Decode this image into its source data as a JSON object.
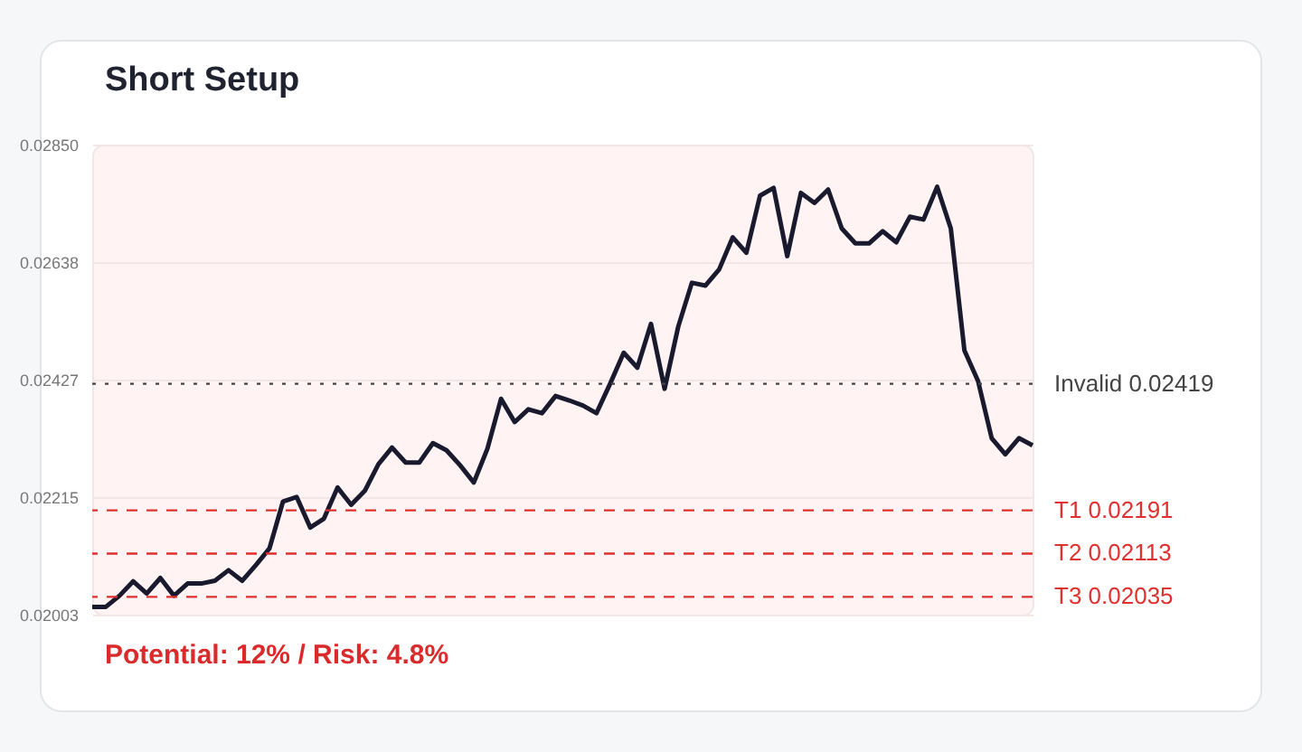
{
  "chart_data": {
    "type": "line",
    "title": "Short Setup",
    "categories": [
      null,
      null,
      null,
      null,
      null,
      null,
      null,
      null,
      null,
      null,
      null,
      null,
      null,
      null,
      null,
      null,
      null,
      null,
      null,
      null,
      null,
      null,
      null,
      null,
      null,
      null,
      null,
      null,
      null,
      null,
      null,
      null,
      null,
      null,
      null,
      null,
      null,
      null,
      null,
      null,
      null,
      null,
      null,
      null,
      null,
      null,
      null,
      null,
      null,
      null,
      null,
      null,
      null,
      null,
      null,
      null,
      null,
      null,
      null,
      null,
      null,
      null,
      null,
      null,
      null,
      null,
      null,
      null,
      null,
      null
    ],
    "series": [
      {
        "color": "#1a1a2e",
        "values": [
          0.02017,
          0.02017,
          0.02037,
          0.02063,
          0.02041,
          0.02069,
          0.02037,
          0.02059,
          0.02059,
          0.02064,
          0.02083,
          0.02064,
          0.02092,
          0.02122,
          0.02207,
          0.02215,
          0.0216,
          0.02176,
          0.02232,
          0.02201,
          0.02226,
          0.02274,
          0.02304,
          0.02277,
          0.02277,
          0.02312,
          0.02299,
          0.02272,
          0.02241,
          0.02302,
          0.02392,
          0.0235,
          0.02373,
          0.02366,
          0.02397,
          0.02389,
          0.0238,
          0.02366,
          0.02419,
          0.02475,
          0.02448,
          0.02527,
          0.0241,
          0.02522,
          0.02601,
          0.02596,
          0.02625,
          0.02683,
          0.02655,
          0.02758,
          0.02772,
          0.02649,
          0.02763,
          0.02745,
          0.02769,
          0.02699,
          0.02672,
          0.02672,
          0.02694,
          0.02674,
          0.0272,
          0.02715,
          0.02774,
          0.02699,
          0.02479,
          0.02424,
          0.02321,
          0.02292,
          0.02321,
          0.02308
        ]
      }
    ],
    "ylim": [
      0.02003,
      0.0285
    ],
    "yticks": [
      0.02003,
      0.02215,
      0.02427,
      0.02638,
      {
        "value": 0.0285,
        "label": "0.02850"
      }
    ],
    "grid": "y",
    "ref_lines": [
      {
        "axis": "y",
        "value": 0.02419,
        "label": "Invalid 0.02419",
        "color": "#444444",
        "line_style": "dotted"
      },
      {
        "axis": "y",
        "value": 0.02191,
        "label": "T1 0.02191",
        "color": "#e03131",
        "line_style": "dashed"
      },
      {
        "axis": "y",
        "value": 0.02113,
        "label": "T2 0.02113",
        "color": "#e03131",
        "line_style": "dashed"
      },
      {
        "axis": "y",
        "value": 0.02035,
        "label": "T3 0.02035",
        "color": "#e03131",
        "line_style": "dashed"
      }
    ],
    "annotations": [
      "Potential: 12% / Risk: 4.8%"
    ]
  }
}
